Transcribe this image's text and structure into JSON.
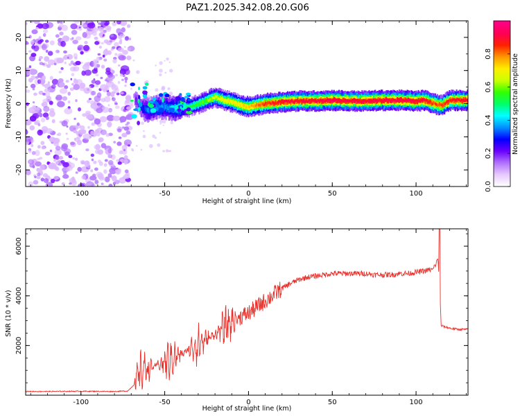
{
  "title": "PAZ1.2025.342.08.20.G06",
  "chart_data": [
    {
      "type": "heatmap",
      "name": "spectrogram",
      "xlabel": "Height of straight line (km)",
      "ylabel": "Frequency (Hz)",
      "xlim": [
        -133,
        131
      ],
      "ylim": [
        -25,
        25
      ],
      "xticks": [
        -100,
        -50,
        0,
        50,
        100
      ],
      "yticks": [
        -20,
        -10,
        0,
        10,
        20
      ],
      "colorbar": {
        "label": "Normalized spectral amplitude",
        "range": [
          0,
          1
        ],
        "ticks": [
          0.0,
          0.2,
          0.4,
          0.6,
          0.8
        ],
        "colors": [
          "#ffffff",
          "#e8c8ff",
          "#b070ff",
          "#6a00ff",
          "#0000ff",
          "#0090ff",
          "#00ffff",
          "#00ff66",
          "#33ff00",
          "#ccff00",
          "#ffee00",
          "#ff9900",
          "#ff2200",
          "#ff0055",
          "#ff0088"
        ]
      },
      "noise_region_x": [
        -133,
        -70
      ],
      "signal_track": {
        "x": [
          -70,
          -65,
          -60,
          -55,
          -50,
          -45,
          -40,
          -35,
          -30,
          -25,
          -20,
          -15,
          -10,
          -5,
          0,
          5,
          10,
          20,
          30,
          40,
          50,
          60,
          70,
          80,
          90,
          100,
          105,
          110,
          115,
          120,
          131
        ],
        "freq": [
          3,
          -1,
          -2,
          -1,
          -1,
          -1.5,
          -1,
          -1,
          0,
          1,
          2,
          1,
          0.5,
          -0.5,
          -1,
          -0.5,
          0,
          0.5,
          0.8,
          0.8,
          1,
          0.8,
          0.8,
          1,
          1,
          0.8,
          1,
          0,
          -0.5,
          1,
          1
        ],
        "amplitude": [
          0.1,
          0.25,
          0.35,
          0.35,
          0.35,
          0.4,
          0.45,
          0.5,
          0.55,
          0.6,
          0.65,
          0.7,
          0.7,
          0.72,
          0.75,
          0.8,
          0.85,
          0.9,
          0.9,
          0.9,
          0.92,
          0.92,
          0.92,
          0.92,
          0.92,
          0.92,
          0.9,
          0.85,
          0.85,
          0.88,
          0.9
        ]
      }
    },
    {
      "type": "line",
      "name": "snr",
      "xlabel": "Height of straight line (km)",
      "ylabel": "SNR (10 * v/v)",
      "xlim": [
        -133,
        131
      ],
      "ylim": [
        0,
        6700
      ],
      "xticks": [
        -100,
        -50,
        0,
        50,
        100
      ],
      "yticks": [
        2000,
        4000,
        6000
      ],
      "series": [
        {
          "name": "SNR",
          "color": "#e8302a",
          "x": [
            -133,
            -120,
            -100,
            -80,
            -72,
            -68,
            -65,
            -62,
            -60,
            -55,
            -50,
            -45,
            -40,
            -35,
            -30,
            -25,
            -20,
            -15,
            -10,
            -5,
            0,
            5,
            10,
            15,
            20,
            25,
            30,
            35,
            40,
            45,
            50,
            55,
            60,
            65,
            70,
            75,
            80,
            85,
            90,
            95,
            100,
            105,
            108,
            110,
            111,
            112,
            113,
            114,
            115,
            120,
            125,
            131
          ],
          "y": [
            150,
            150,
            160,
            150,
            170,
            450,
            900,
            1100,
            1050,
            1200,
            1300,
            1500,
            1650,
            1850,
            2050,
            2250,
            2450,
            2700,
            2950,
            3150,
            3300,
            3550,
            3800,
            4050,
            4300,
            4500,
            4650,
            4750,
            4800,
            4850,
            4900,
            4900,
            4900,
            4900,
            4900,
            4850,
            4850,
            4850,
            4900,
            4900,
            4950,
            5000,
            5050,
            5050,
            5200,
            5300,
            5500,
            4500,
            2800,
            2700,
            2650,
            2650
          ]
        }
      ]
    }
  ]
}
